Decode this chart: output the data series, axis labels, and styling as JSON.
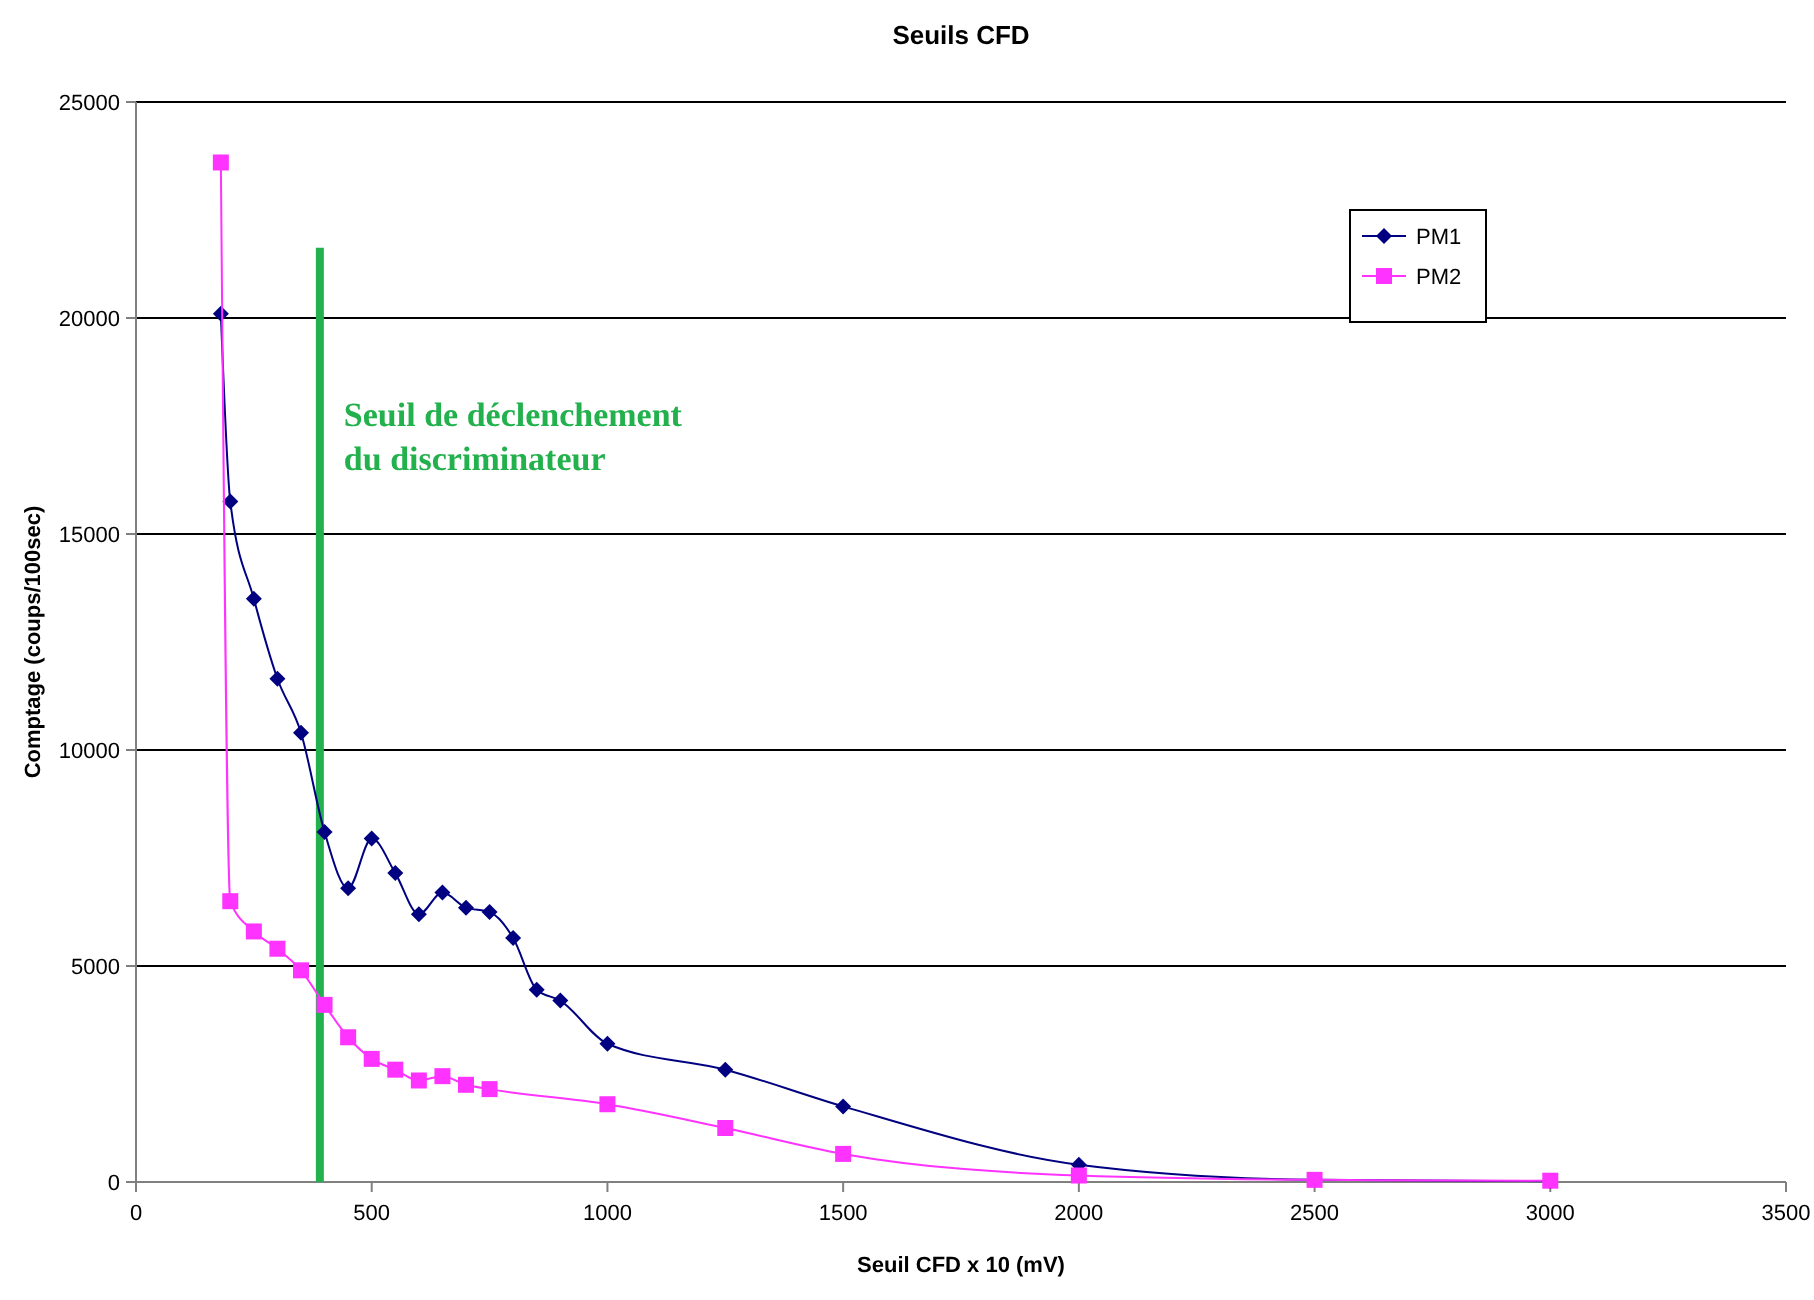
{
  "chart_data": {
    "type": "line",
    "title": "Seuils CFD",
    "xlabel": "Seuil CFD x 10 (mV)",
    "ylabel": "Comptage  (coups/100sec)",
    "xlim": [
      0,
      3500
    ],
    "xticks": [
      0,
      500,
      1000,
      1500,
      2000,
      2500,
      3000,
      3500
    ],
    "ylim": [
      0,
      25000
    ],
    "yticks": [
      0,
      5000,
      10000,
      15000,
      20000,
      25000
    ],
    "grid": "y",
    "legend": "top right",
    "series": [
      {
        "name": "PM1",
        "color": "#000080",
        "marker": "diamond",
        "x": [
          180,
          200,
          250,
          300,
          350,
          400,
          450,
          500,
          550,
          600,
          650,
          700,
          750,
          800,
          850,
          900,
          1000,
          1250,
          1500,
          2000,
          2500,
          3000
        ],
        "values": [
          20100,
          15750,
          13500,
          11650,
          10400,
          8100,
          6800,
          7950,
          7150,
          6200,
          6700,
          6350,
          6250,
          5650,
          4450,
          4200,
          3200,
          2600,
          1750,
          400,
          50,
          20
        ]
      },
      {
        "name": "PM2",
        "color": "#ff33ff",
        "marker": "square",
        "x": [
          180,
          200,
          250,
          300,
          350,
          400,
          450,
          500,
          550,
          600,
          650,
          700,
          750,
          1000,
          1250,
          1500,
          2000,
          2500,
          3000
        ],
        "values": [
          23600,
          6500,
          5800,
          5400,
          4900,
          4100,
          3350,
          2850,
          2600,
          2350,
          2450,
          2250,
          2150,
          1800,
          1250,
          650,
          150,
          50,
          30
        ]
      }
    ],
    "ref_lines": [
      {
        "axis": "x",
        "value": 390,
        "label": "Seuil de déclenchement\ndu discriminateur",
        "color": "#22b14c"
      }
    ]
  }
}
